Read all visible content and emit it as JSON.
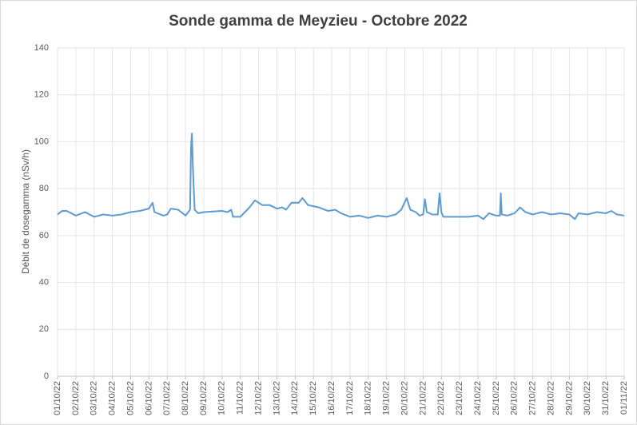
{
  "chart_data": {
    "type": "line",
    "title": "Sonde gamma de Meyzieu - Octobre 2022",
    "y_label": "Débit de dosegamma (nSv/h)",
    "x": [
      0,
      0.25,
      0.5,
      1,
      1.5,
      2,
      2.5,
      3,
      3.5,
      4,
      4.5,
      5,
      5.2,
      5.3,
      5.8,
      6,
      6.2,
      6.6,
      7,
      7.25,
      7.3,
      7.35,
      7.4,
      7.5,
      7.7,
      8,
      9,
      9.3,
      9.5,
      9.6,
      10,
      10.5,
      10.8,
      11.2,
      11.6,
      12,
      12.3,
      12.5,
      12.8,
      13.2,
      13.4,
      13.7,
      14.3,
      14.8,
      15.2,
      15.5,
      16,
      16.5,
      17,
      17.5,
      18,
      18.5,
      18.8,
      19.1,
      19.3,
      19.6,
      19.8,
      20,
      20.1,
      20.2,
      20.5,
      20.8,
      20.9,
      21,
      21.1,
      21.5,
      22,
      22.5,
      23,
      23.3,
      23.6,
      24,
      24.2,
      24.25,
      24.3,
      24.6,
      25,
      25.3,
      25.6,
      26,
      26.5,
      27,
      27.5,
      28,
      28.3,
      28.5,
      29,
      29.5,
      30,
      30.3,
      30.6,
      31
    ],
    "series": [
      {
        "name": "Débit de dose gamma",
        "color": "#5b9bd5",
        "values": [
          69,
          70.5,
          70.5,
          68.5,
          70,
          68,
          69,
          68.5,
          69,
          70,
          70.5,
          71.5,
          74,
          70,
          68.5,
          69,
          71.5,
          71,
          68.5,
          71,
          97,
          103.5,
          90,
          71,
          69.5,
          70,
          70.5,
          70,
          71,
          68,
          68,
          72,
          75,
          73,
          73,
          71.5,
          72,
          71,
          74,
          74,
          76,
          73,
          72,
          70.5,
          71,
          69.5,
          68,
          68.5,
          67.5,
          68.5,
          68,
          69,
          71,
          76,
          71,
          70,
          68.5,
          69,
          75.5,
          70,
          69,
          69,
          78,
          70,
          68,
          68,
          68,
          68,
          68.5,
          67,
          69.5,
          68.5,
          68.5,
          78,
          69,
          68.5,
          69.5,
          72,
          70,
          69,
          70,
          69,
          69.5,
          69,
          67,
          69.5,
          69,
          70,
          69.5,
          70.5,
          69,
          68.5
        ]
      }
    ],
    "xlim": [
      0,
      31
    ],
    "xticks": [
      {
        "value": 0,
        "label": "01/10/22"
      },
      {
        "value": 1,
        "label": "02/10/22"
      },
      {
        "value": 2,
        "label": "03/10/22"
      },
      {
        "value": 3,
        "label": "04/10/22"
      },
      {
        "value": 4,
        "label": "05/10/22"
      },
      {
        "value": 5,
        "label": "06/10/22"
      },
      {
        "value": 6,
        "label": "07/10/22"
      },
      {
        "value": 7,
        "label": "08/10/22"
      },
      {
        "value": 8,
        "label": "09/10/22"
      },
      {
        "value": 9,
        "label": "10/10/22"
      },
      {
        "value": 10,
        "label": "11/10/22"
      },
      {
        "value": 11,
        "label": "12/10/22"
      },
      {
        "value": 12,
        "label": "13/10/22"
      },
      {
        "value": 13,
        "label": "14/10/22"
      },
      {
        "value": 14,
        "label": "15/10/22"
      },
      {
        "value": 15,
        "label": "16/10/22"
      },
      {
        "value": 16,
        "label": "17/10/22"
      },
      {
        "value": 17,
        "label": "18/10/22"
      },
      {
        "value": 18,
        "label": "19/10/22"
      },
      {
        "value": 19,
        "label": "20/10/22"
      },
      {
        "value": 20,
        "label": "21/10/22"
      },
      {
        "value": 21,
        "label": "22/10/22"
      },
      {
        "value": 22,
        "label": "23/10/22"
      },
      {
        "value": 23,
        "label": "24/10/22"
      },
      {
        "value": 24,
        "label": "25/10/22"
      },
      {
        "value": 25,
        "label": "26/10/22"
      },
      {
        "value": 26,
        "label": "27/10/22"
      },
      {
        "value": 27,
        "label": "28/10/22"
      },
      {
        "value": 28,
        "label": "29/10/22"
      },
      {
        "value": 29,
        "label": "30/10/22"
      },
      {
        "value": 30,
        "label": "31/10/22"
      },
      {
        "value": 31,
        "label": "01/11/22"
      }
    ],
    "ylim": [
      0,
      140
    ],
    "yticks": [
      0,
      20,
      40,
      60,
      80,
      100,
      120,
      140
    ],
    "grid": true
  }
}
